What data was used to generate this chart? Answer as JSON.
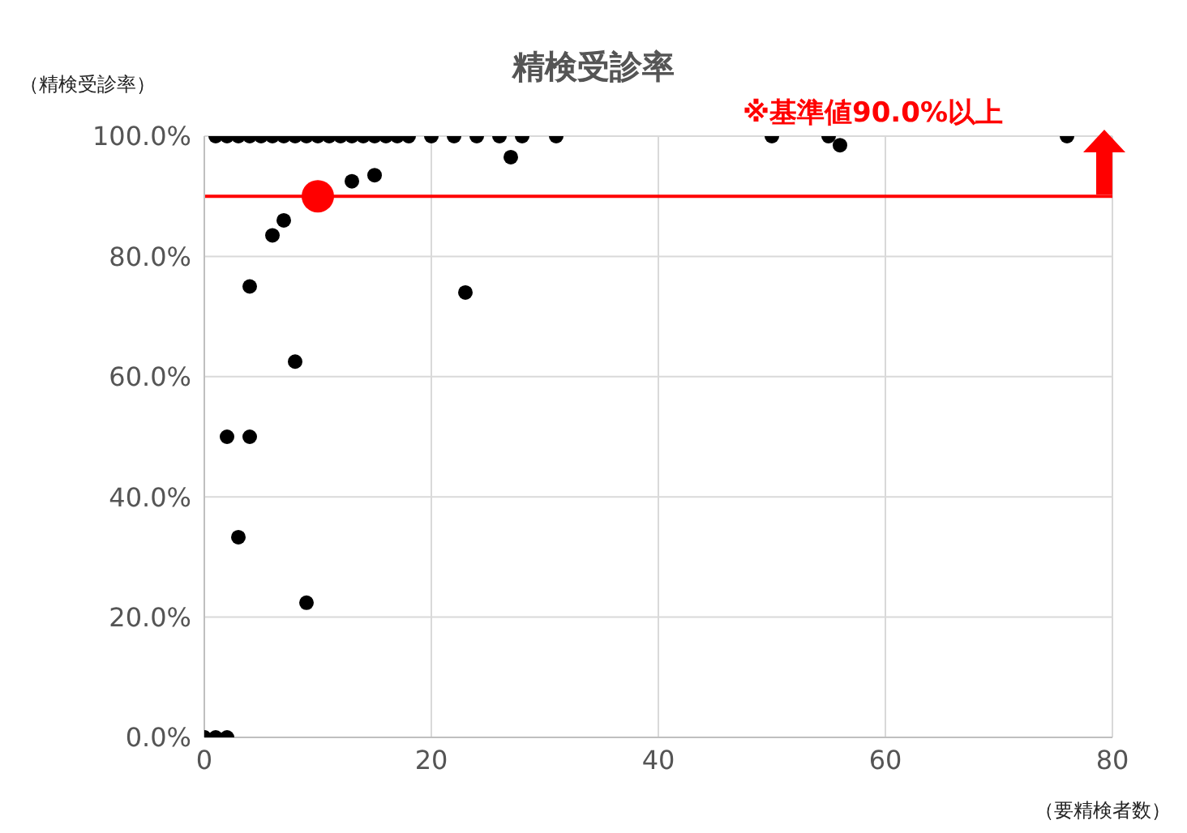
{
  "chart_data": {
    "type": "scatter",
    "title": "精検受診率",
    "xlabel": "（要精検者数）",
    "ylabel": "（精検受診率）",
    "annotations": [
      "※基準値90.0%以上"
    ],
    "xlim": [
      0,
      80
    ],
    "xticks": [
      0,
      20,
      40,
      60,
      80
    ],
    "ylim": [
      0,
      100
    ],
    "yticks": [
      {
        "value": 0,
        "label": "0.0%"
      },
      {
        "value": 20,
        "label": "20.0%"
      },
      {
        "value": 40,
        "label": "40.0%"
      },
      {
        "value": 60,
        "label": "60.0%"
      },
      {
        "value": 80,
        "label": "80.0%"
      },
      {
        "value": 100,
        "label": "100.0%"
      }
    ],
    "grid": true,
    "marker": "circle",
    "ref_lines": [
      {
        "axis": "y",
        "value": 90,
        "color": "#ff0000"
      }
    ],
    "series": [
      {
        "color": "#000000",
        "x": [
          1,
          2,
          3,
          4,
          5,
          6,
          7,
          8,
          9,
          10,
          11,
          12,
          13,
          14,
          15,
          16,
          17,
          18,
          20,
          22,
          24,
          26,
          28,
          31,
          50,
          55,
          76,
          27,
          56,
          13,
          15,
          7,
          6,
          4,
          23,
          8,
          2,
          4,
          3,
          9,
          0,
          1,
          2
        ],
        "values": [
          100,
          100,
          100,
          100,
          100,
          100,
          100,
          100,
          100,
          100,
          100,
          100,
          100,
          100,
          100,
          100,
          100,
          100,
          100,
          100,
          100,
          100,
          100,
          100,
          100,
          100,
          100,
          96.5,
          98.5,
          92.5,
          93.5,
          86,
          83.5,
          75,
          74,
          62.5,
          50,
          50,
          33.3,
          22.4,
          0,
          0,
          0
        ]
      },
      {
        "color": "#ff0000",
        "x": [
          10
        ],
        "values": [
          90
        ]
      }
    ]
  }
}
